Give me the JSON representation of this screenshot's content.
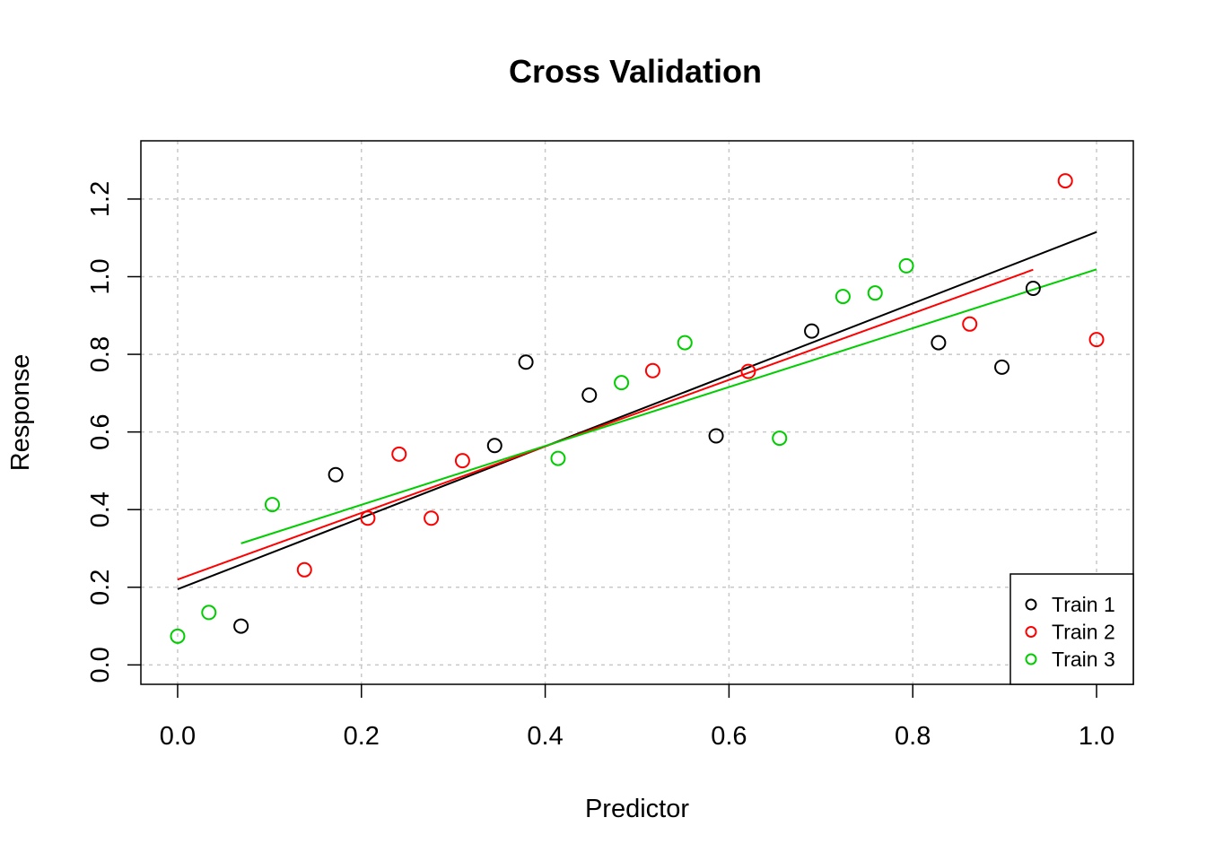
{
  "chart_data": {
    "type": "scatter",
    "title": "Cross Validation",
    "xlabel": "Predictor",
    "ylabel": "Response",
    "xlim": [
      -0.04,
      1.04
    ],
    "ylim": [
      -0.05,
      1.35
    ],
    "x_ticks": [
      0.0,
      0.2,
      0.4,
      0.6,
      0.8,
      1.0
    ],
    "x_tick_labels": [
      "0.0",
      "0.2",
      "0.4",
      "0.6",
      "0.8",
      "1.0"
    ],
    "y_ticks": [
      0.0,
      0.2,
      0.4,
      0.6,
      0.8,
      1.0,
      1.2
    ],
    "y_tick_labels": [
      "0.0",
      "0.2",
      "0.4",
      "0.6",
      "0.8",
      "1.0",
      "1.2"
    ],
    "grid": true,
    "legend_position": "bottom-right",
    "series": [
      {
        "name": "Train 1",
        "color": "#000000",
        "x": [
          0.069,
          0.172,
          0.345,
          0.379,
          0.448,
          0.586,
          0.69,
          0.828,
          0.897,
          0.931
        ],
        "y": [
          0.1,
          0.49,
          0.565,
          0.78,
          0.695,
          0.59,
          0.86,
          0.83,
          0.767,
          0.97
        ],
        "fit_line": {
          "x": [
            0.0,
            1.0
          ],
          "y": [
            0.195,
            1.115
          ]
        }
      },
      {
        "name": "Train 2",
        "color": "#ff0000",
        "x": [
          0.138,
          0.207,
          0.241,
          0.276,
          0.31,
          0.517,
          0.621,
          0.862,
          0.966,
          1.0
        ],
        "y": [
          0.245,
          0.378,
          0.543,
          0.378,
          0.526,
          0.758,
          0.756,
          0.878,
          1.247,
          0.838
        ],
        "fit_line": {
          "x": [
            0.0,
            0.931
          ],
          "y": [
            0.22,
            1.018
          ]
        }
      },
      {
        "name": "Train 3",
        "color": "#00cd00",
        "x": [
          0.0,
          0.034,
          0.103,
          0.414,
          0.483,
          0.552,
          0.655,
          0.724,
          0.759,
          0.793
        ],
        "y": [
          0.074,
          0.135,
          0.413,
          0.532,
          0.727,
          0.83,
          0.584,
          0.949,
          0.958,
          1.028
        ],
        "fit_line": {
          "x": [
            0.069,
            1.0
          ],
          "y": [
            0.313,
            1.019
          ]
        }
      }
    ]
  }
}
